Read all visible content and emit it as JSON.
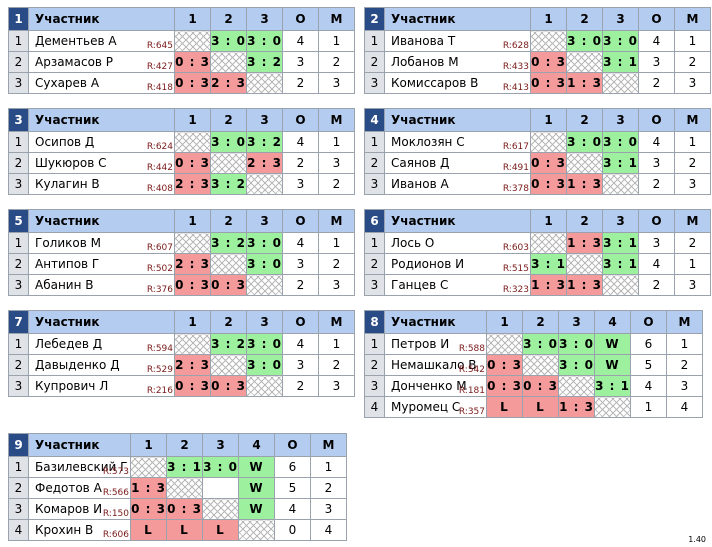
{
  "version": "1.40",
  "groups": [
    {
      "num": "1",
      "col_participant": "Участник",
      "col_o": "О",
      "col_m": "М",
      "cols": [
        "1",
        "2",
        "3"
      ],
      "rows": [
        {
          "n": "1",
          "name": "Дементьев А",
          "rating": "R:645",
          "cells": [
            {
              "t": "x",
              "v": ""
            },
            {
              "t": "w",
              "v": "3 : 0"
            },
            {
              "t": "w",
              "v": "3 : 0"
            }
          ],
          "o": "4",
          "m": "1"
        },
        {
          "n": "2",
          "name": "Арзамасов Р",
          "rating": "R:427",
          "cells": [
            {
              "t": "l",
              "v": "0 : 3"
            },
            {
              "t": "x",
              "v": ""
            },
            {
              "t": "w",
              "v": "3 : 2"
            }
          ],
          "o": "3",
          "m": "2"
        },
        {
          "n": "3",
          "name": "Сухарев А",
          "rating": "R:418",
          "cells": [
            {
              "t": "l",
              "v": "0 : 3"
            },
            {
              "t": "l",
              "v": "2 : 3"
            },
            {
              "t": "x",
              "v": ""
            }
          ],
          "o": "2",
          "m": "3"
        }
      ]
    },
    {
      "num": "2",
      "col_participant": "Участник",
      "col_o": "О",
      "col_m": "М",
      "cols": [
        "1",
        "2",
        "3"
      ],
      "rows": [
        {
          "n": "1",
          "name": "Иванова Т",
          "rating": "R:628",
          "cells": [
            {
              "t": "x",
              "v": ""
            },
            {
              "t": "w",
              "v": "3 : 0"
            },
            {
              "t": "w",
              "v": "3 : 0"
            }
          ],
          "o": "4",
          "m": "1"
        },
        {
          "n": "2",
          "name": "Лобанов М",
          "rating": "R:433",
          "cells": [
            {
              "t": "l",
              "v": "0 : 3"
            },
            {
              "t": "x",
              "v": ""
            },
            {
              "t": "w",
              "v": "3 : 1"
            }
          ],
          "o": "3",
          "m": "2"
        },
        {
          "n": "3",
          "name": "Комиссаров В",
          "rating": "R:413",
          "cells": [
            {
              "t": "l",
              "v": "0 : 3"
            },
            {
              "t": "l",
              "v": "1 : 3"
            },
            {
              "t": "x",
              "v": ""
            }
          ],
          "o": "2",
          "m": "3"
        }
      ]
    },
    {
      "num": "3",
      "col_participant": "Участник",
      "col_o": "О",
      "col_m": "М",
      "cols": [
        "1",
        "2",
        "3"
      ],
      "rows": [
        {
          "n": "1",
          "name": "Осипов Д",
          "rating": "R:624",
          "cells": [
            {
              "t": "x",
              "v": ""
            },
            {
              "t": "w",
              "v": "3 : 0"
            },
            {
              "t": "w",
              "v": "3 : 2"
            }
          ],
          "o": "4",
          "m": "1"
        },
        {
          "n": "2",
          "name": "Шукюров С",
          "rating": "R:442",
          "cells": [
            {
              "t": "l",
              "v": "0 : 3"
            },
            {
              "t": "x",
              "v": ""
            },
            {
              "t": "l",
              "v": "2 : 3"
            }
          ],
          "o": "2",
          "m": "3"
        },
        {
          "n": "3",
          "name": "Кулагин В",
          "rating": "R:408",
          "cells": [
            {
              "t": "l",
              "v": "2 : 3"
            },
            {
              "t": "w",
              "v": "3 : 2"
            },
            {
              "t": "x",
              "v": ""
            }
          ],
          "o": "3",
          "m": "2"
        }
      ]
    },
    {
      "num": "4",
      "col_participant": "Участник",
      "col_o": "О",
      "col_m": "М",
      "cols": [
        "1",
        "2",
        "3"
      ],
      "rows": [
        {
          "n": "1",
          "name": "Моклозян С",
          "rating": "R:617",
          "cells": [
            {
              "t": "x",
              "v": ""
            },
            {
              "t": "w",
              "v": "3 : 0"
            },
            {
              "t": "w",
              "v": "3 : 0"
            }
          ],
          "o": "4",
          "m": "1"
        },
        {
          "n": "2",
          "name": "Саянов Д",
          "rating": "R:491",
          "cells": [
            {
              "t": "l",
              "v": "0 : 3"
            },
            {
              "t": "x",
              "v": ""
            },
            {
              "t": "w",
              "v": "3 : 1"
            }
          ],
          "o": "3",
          "m": "2"
        },
        {
          "n": "3",
          "name": "Иванов А",
          "rating": "R:378",
          "cells": [
            {
              "t": "l",
              "v": "0 : 3"
            },
            {
              "t": "l",
              "v": "1 : 3"
            },
            {
              "t": "x",
              "v": ""
            }
          ],
          "o": "2",
          "m": "3"
        }
      ]
    },
    {
      "num": "5",
      "col_participant": "Участник",
      "col_o": "О",
      "col_m": "М",
      "cols": [
        "1",
        "2",
        "3"
      ],
      "rows": [
        {
          "n": "1",
          "name": "Голиков М",
          "rating": "R:607",
          "cells": [
            {
              "t": "x",
              "v": ""
            },
            {
              "t": "w",
              "v": "3 : 2"
            },
            {
              "t": "w",
              "v": "3 : 0"
            }
          ],
          "o": "4",
          "m": "1"
        },
        {
          "n": "2",
          "name": "Антипов Г",
          "rating": "R:502",
          "cells": [
            {
              "t": "l",
              "v": "2 : 3"
            },
            {
              "t": "x",
              "v": ""
            },
            {
              "t": "w",
              "v": "3 : 0"
            }
          ],
          "o": "3",
          "m": "2"
        },
        {
          "n": "3",
          "name": "Абанин В",
          "rating": "R:376",
          "cells": [
            {
              "t": "l",
              "v": "0 : 3"
            },
            {
              "t": "l",
              "v": "0 : 3"
            },
            {
              "t": "x",
              "v": ""
            }
          ],
          "o": "2",
          "m": "3"
        }
      ]
    },
    {
      "num": "6",
      "col_participant": "Участник",
      "col_o": "О",
      "col_m": "М",
      "cols": [
        "1",
        "2",
        "3"
      ],
      "rows": [
        {
          "n": "1",
          "name": "Лось О",
          "rating": "R:603",
          "cells": [
            {
              "t": "x",
              "v": ""
            },
            {
              "t": "l",
              "v": "1 : 3"
            },
            {
              "t": "w",
              "v": "3 : 1"
            }
          ],
          "o": "3",
          "m": "2"
        },
        {
          "n": "2",
          "name": "Родионов И",
          "rating": "R:515",
          "cells": [
            {
              "t": "w",
              "v": "3 : 1"
            },
            {
              "t": "x",
              "v": ""
            },
            {
              "t": "w",
              "v": "3 : 1"
            }
          ],
          "o": "4",
          "m": "1"
        },
        {
          "n": "3",
          "name": "Ганцев С",
          "rating": "R:323",
          "cells": [
            {
              "t": "l",
              "v": "1 : 3"
            },
            {
              "t": "l",
              "v": "1 : 3"
            },
            {
              "t": "x",
              "v": ""
            }
          ],
          "o": "2",
          "m": "3"
        }
      ]
    },
    {
      "num": "7",
      "col_participant": "Участник",
      "col_o": "О",
      "col_m": "М",
      "cols": [
        "1",
        "2",
        "3"
      ],
      "rows": [
        {
          "n": "1",
          "name": "Лебедев Д",
          "rating": "R:594",
          "cells": [
            {
              "t": "x",
              "v": ""
            },
            {
              "t": "w",
              "v": "3 : 2"
            },
            {
              "t": "w",
              "v": "3 : 0"
            }
          ],
          "o": "4",
          "m": "1"
        },
        {
          "n": "2",
          "name": "Давыденко Д",
          "rating": "R:529",
          "cells": [
            {
              "t": "l",
              "v": "2 : 3"
            },
            {
              "t": "x",
              "v": ""
            },
            {
              "t": "w",
              "v": "3 : 0"
            }
          ],
          "o": "3",
          "m": "2"
        },
        {
          "n": "3",
          "name": "Купрович Л",
          "rating": "R:216",
          "cells": [
            {
              "t": "l",
              "v": "0 : 3"
            },
            {
              "t": "l",
              "v": "0 : 3"
            },
            {
              "t": "x",
              "v": ""
            }
          ],
          "o": "2",
          "m": "3"
        }
      ]
    },
    {
      "num": "8",
      "col_participant": "Участник",
      "col_o": "О",
      "col_m": "М",
      "cols": [
        "1",
        "2",
        "3",
        "4"
      ],
      "rows": [
        {
          "n": "1",
          "name": "Петров И",
          "rating": "R:588",
          "cells": [
            {
              "t": "x",
              "v": ""
            },
            {
              "t": "w",
              "v": "3 : 0"
            },
            {
              "t": "w",
              "v": "3 : 0"
            },
            {
              "t": "w",
              "v": "W"
            }
          ],
          "o": "6",
          "m": "1"
        },
        {
          "n": "2",
          "name": "Немашкало В",
          "rating": "R:542",
          "cells": [
            {
              "t": "l",
              "v": "0 : 3"
            },
            {
              "t": "x",
              "v": ""
            },
            {
              "t": "w",
              "v": "3 : 0"
            },
            {
              "t": "w",
              "v": "W"
            }
          ],
          "o": "5",
          "m": "2"
        },
        {
          "n": "3",
          "name": "Донченко М",
          "rating": "R:181",
          "cells": [
            {
              "t": "l",
              "v": "0 : 3"
            },
            {
              "t": "l",
              "v": "0 : 3"
            },
            {
              "t": "x",
              "v": ""
            },
            {
              "t": "w",
              "v": "3 : 1"
            }
          ],
          "o": "4",
          "m": "3"
        },
        {
          "n": "4",
          "name": "Муромец С",
          "rating": "R:357",
          "cells": [
            {
              "t": "l",
              "v": "L"
            },
            {
              "t": "l",
              "v": "L"
            },
            {
              "t": "l",
              "v": "1 : 3"
            },
            {
              "t": "x",
              "v": ""
            }
          ],
          "o": "1",
          "m": "4"
        }
      ]
    },
    {
      "num": "9",
      "col_participant": "Участник",
      "col_o": "О",
      "col_m": "М",
      "cols": [
        "1",
        "2",
        "3",
        "4"
      ],
      "rows": [
        {
          "n": "1",
          "name": "Базилевский Г",
          "rating": "R:573",
          "cells": [
            {
              "t": "x",
              "v": ""
            },
            {
              "t": "w",
              "v": "3 : 1"
            },
            {
              "t": "w",
              "v": "3 : 0"
            },
            {
              "t": "w",
              "v": "W"
            }
          ],
          "o": "6",
          "m": "1"
        },
        {
          "n": "2",
          "name": "Федотов А",
          "rating": "R:566",
          "cells": [
            {
              "t": "l",
              "v": "1 : 3"
            },
            {
              "t": "x",
              "v": ""
            },
            {
              "t": "plain",
              "v": ""
            },
            {
              "t": "w",
              "v": "W"
            }
          ],
          "o": "5",
          "m": "2"
        },
        {
          "n": "3",
          "name": "Комаров И",
          "rating": "R:150",
          "cells": [
            {
              "t": "l",
              "v": "0 : 3"
            },
            {
              "t": "l",
              "v": "0 : 3"
            },
            {
              "t": "x",
              "v": ""
            },
            {
              "t": "w",
              "v": "W"
            }
          ],
          "o": "4",
          "m": "3"
        },
        {
          "n": "4",
          "name": "Крохин В",
          "rating": "R:606",
          "cells": [
            {
              "t": "l",
              "v": "L"
            },
            {
              "t": "l",
              "v": "L"
            },
            {
              "t": "l",
              "v": "L"
            },
            {
              "t": "x",
              "v": ""
            }
          ],
          "o": "0",
          "m": "4"
        }
      ]
    }
  ]
}
